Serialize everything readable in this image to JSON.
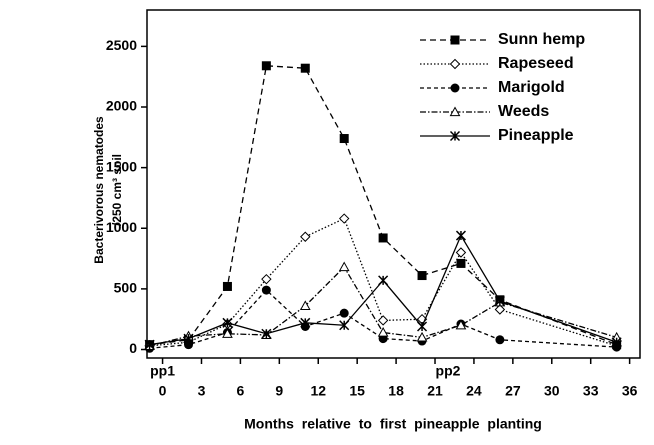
{
  "chart_data": {
    "type": "line",
    "x_label": "Months relative to first pineapple planting",
    "y_label": [
      "Bacterivorous nematodes",
      "/250 cm³ soil"
    ],
    "annotations": [
      {
        "text": "pp1",
        "x": 0
      },
      {
        "text": "pp2",
        "x": 22
      }
    ],
    "x": [
      -1,
      2,
      5,
      8,
      11,
      14,
      17,
      20,
      23,
      26,
      35
    ],
    "series": [
      {
        "name": "Sunn hemp",
        "color": "#000",
        "dash": "6,4",
        "marker": "square",
        "values": [
          40,
          80,
          520,
          2340,
          2320,
          1740,
          920,
          610,
          710,
          410,
          40
        ]
      },
      {
        "name": "Rapeseed",
        "color": "#000",
        "dash": "1.5,2",
        "marker": "diamond",
        "values": [
          30,
          60,
          210,
          580,
          930,
          1080,
          240,
          250,
          800,
          330,
          30
        ]
      },
      {
        "name": "Marigold",
        "color": "#000",
        "dash": "4,3",
        "marker": "circle",
        "values": [
          10,
          40,
          140,
          490,
          190,
          300,
          90,
          70,
          210,
          80,
          20
        ]
      },
      {
        "name": "Weeds",
        "color": "#000",
        "dash": "6,2,1.5,2",
        "marker": "triangle",
        "values": [
          30,
          110,
          130,
          120,
          360,
          680,
          140,
          100,
          200,
          390,
          100
        ]
      },
      {
        "name": "Pineapple",
        "color": "#000",
        "dash": "",
        "marker": "asterisk",
        "values": [
          40,
          90,
          220,
          130,
          220,
          200,
          570,
          190,
          940,
          400,
          60
        ]
      }
    ],
    "xlim": [
      -1.2,
      36.8
    ],
    "xticks": [
      0,
      3,
      6,
      9,
      12,
      15,
      18,
      21,
      24,
      27,
      30,
      33,
      36
    ],
    "ylim": [
      -70,
      2800
    ],
    "yticks": [
      0,
      500,
      1000,
      1500,
      2000,
      2500
    ],
    "legend": "upper right"
  }
}
